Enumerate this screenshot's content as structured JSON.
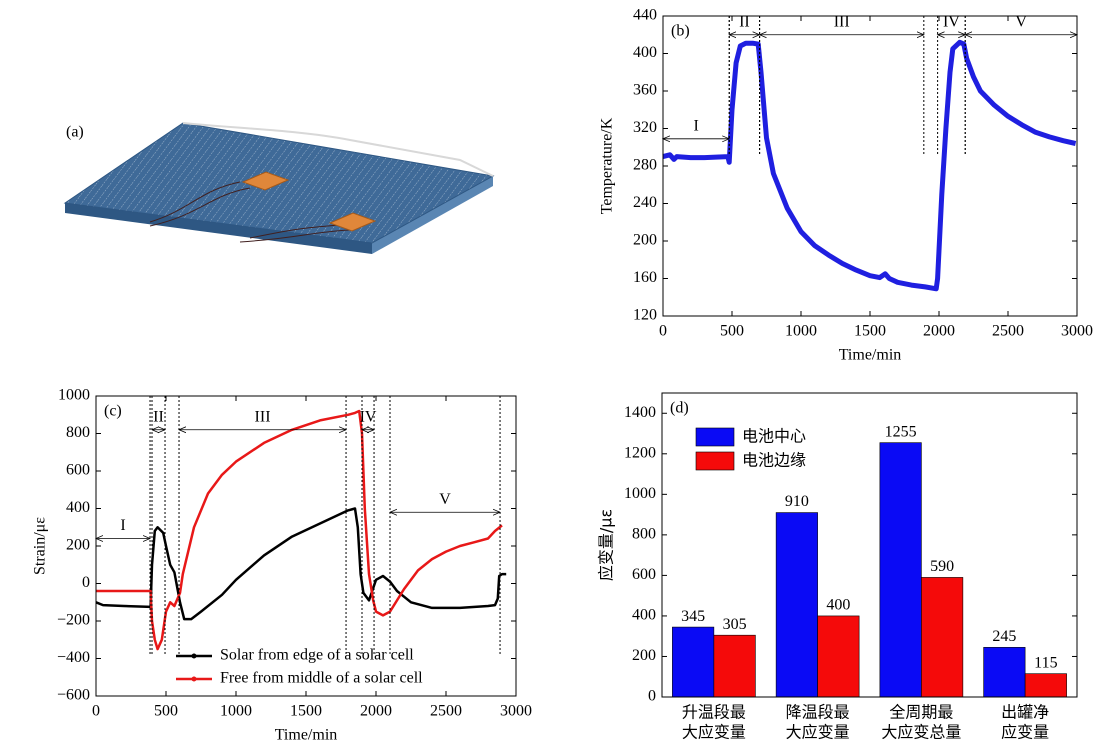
{
  "illustration": {
    "label": "(a)"
  },
  "chart_data": [
    {
      "type": "line",
      "title": "(b)",
      "xlabel": "Time/min",
      "ylabel": "Temperature/K",
      "xlim": [
        0,
        3000
      ],
      "xticks": [
        0,
        500,
        1000,
        1500,
        2000,
        2500,
        3000
      ],
      "ylim": [
        120,
        440
      ],
      "yticks": [
        120,
        160,
        200,
        240,
        280,
        320,
        360,
        400,
        440
      ],
      "series": [
        {
          "color": "#1f1fe0",
          "x": [
            0,
            50,
            80,
            100,
            200,
            300,
            470,
            480,
            500,
            530,
            560,
            600,
            650,
            690,
            710,
            750,
            800,
            900,
            1000,
            1100,
            1200,
            1300,
            1400,
            1500,
            1570,
            1610,
            1640,
            1700,
            1800,
            1900,
            1980,
            1990,
            2000,
            2020,
            2050,
            2080,
            2100,
            2150,
            2180,
            2200,
            2250,
            2300,
            2400,
            2500,
            2600,
            2700,
            2800,
            2900,
            2990
          ],
          "values": [
            290,
            292,
            287,
            290,
            289,
            289,
            290,
            284,
            340,
            390,
            408,
            411,
            411,
            410,
            380,
            310,
            272,
            235,
            210,
            195,
            185,
            176,
            169,
            163,
            161,
            165,
            160,
            156,
            153,
            151,
            149,
            160,
            190,
            250,
            320,
            380,
            405,
            412,
            410,
            395,
            375,
            360,
            345,
            333,
            324,
            316,
            311,
            307,
            304
          ]
        }
      ],
      "phases": [
        {
          "label": "I",
          "start": 0,
          "end": 480,
          "y": 309
        },
        {
          "label": "II",
          "start": 480,
          "end": 700,
          "y": 420
        },
        {
          "label": "III",
          "start": 700,
          "end": 1890,
          "y": 420
        },
        {
          "label": "IV",
          "start": 1990,
          "end": 2190,
          "y": 420
        },
        {
          "label": "V",
          "start": 2190,
          "end": 3000,
          "y": 420
        }
      ]
    },
    {
      "type": "line",
      "title": "(c)",
      "xlabel": "Time/min",
      "ylabel": "Strain/με",
      "xlim": [
        0,
        3000
      ],
      "xticks": [
        0,
        500,
        1000,
        1500,
        2000,
        2500,
        3000
      ],
      "ylim": [
        -600,
        1000
      ],
      "yticks": [
        {
          "value": -600,
          "label": "−600"
        },
        {
          "value": -400,
          "label": "−400"
        },
        {
          "value": -200,
          "label": "−200"
        },
        0,
        200,
        400,
        600,
        800,
        1000
      ],
      "legend": "lower right",
      "series": [
        {
          "name": "Solar from edge of a solar cell",
          "color": "#000000",
          "x": [
            0,
            50,
            200,
            390,
            400,
            420,
            440,
            480,
            500,
            530,
            560,
            600,
            630,
            680,
            750,
            900,
            1000,
            1200,
            1400,
            1600,
            1800,
            1850,
            1870,
            1890,
            1910,
            1950,
            2000,
            2050,
            2100,
            2150,
            2250,
            2400,
            2600,
            2800,
            2850,
            2870,
            2880,
            2900,
            2930
          ],
          "values": [
            -100,
            -115,
            -120,
            -125,
            100,
            280,
            300,
            270,
            200,
            100,
            60,
            -100,
            -190,
            -190,
            -150,
            -60,
            20,
            150,
            250,
            320,
            390,
            400,
            300,
            50,
            -50,
            -90,
            20,
            40,
            10,
            -40,
            -100,
            -130,
            -130,
            -120,
            -115,
            -80,
            40,
            50,
            50
          ]
        },
        {
          "name": "Free from middle of a solar cell",
          "color": "#e81818",
          "x": [
            0,
            390,
            400,
            420,
            440,
            470,
            500,
            530,
            560,
            600,
            620,
            700,
            800,
            900,
            1000,
            1200,
            1400,
            1600,
            1800,
            1850,
            1880,
            1900,
            1920,
            1950,
            1980,
            2000,
            2050,
            2100,
            2200,
            2300,
            2400,
            2500,
            2600,
            2700,
            2800,
            2850,
            2900
          ],
          "values": [
            -40,
            -40,
            -200,
            -300,
            -350,
            -300,
            -150,
            -100,
            -120,
            -50,
            50,
            300,
            480,
            580,
            650,
            750,
            820,
            870,
            900,
            910,
            920,
            800,
            400,
            50,
            -90,
            -150,
            -170,
            -150,
            -30,
            70,
            130,
            170,
            200,
            220,
            240,
            280,
            310
          ]
        }
      ],
      "phases": [
        {
          "label": "I",
          "start": 0,
          "end": 386,
          "y": 240
        },
        {
          "label": "II",
          "start": 400,
          "end": 493,
          "y": 820
        },
        {
          "label": "III",
          "start": 593,
          "end": 1786,
          "y": 820
        },
        {
          "label": "IV",
          "start": 1900,
          "end": 1986,
          "y": 820
        },
        {
          "label": "V",
          "start": 2100,
          "end": 2886,
          "y": 380
        }
      ]
    },
    {
      "type": "bar",
      "title": "(d)",
      "ylabel": "应变量/με",
      "categories": [
        [
          "升温段最",
          "大应变量"
        ],
        [
          "降温段最",
          "大应变量"
        ],
        [
          "全周期最",
          "大应变总量"
        ],
        [
          "出罐净",
          "应变量"
        ]
      ],
      "ylim": [
        0,
        1500
      ],
      "yticks": [
        0,
        200,
        400,
        600,
        800,
        1000,
        1200,
        1400
      ],
      "legend": "upper left",
      "series": [
        {
          "name": "电池中心",
          "color": "#0a0af5",
          "values": [
            345,
            910,
            1255,
            245
          ]
        },
        {
          "name": "电池边缘",
          "color": "#f50a0a",
          "values": [
            305,
            400,
            590,
            115
          ]
        }
      ]
    }
  ]
}
